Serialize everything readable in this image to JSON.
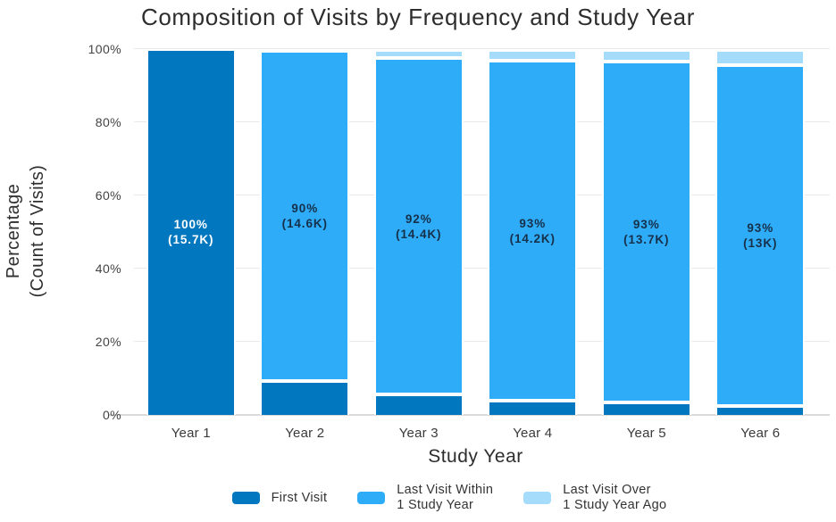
{
  "chart": {
    "title": "Composition of Visits by Frequency and Study Year",
    "y_axis": {
      "title_line1": "Percentage",
      "title_line2": "(Count of Visits)",
      "ticks": [
        "0%",
        "20%",
        "40%",
        "60%",
        "80%",
        "100%"
      ]
    },
    "x_axis": {
      "title": "Study Year"
    }
  },
  "chart_data": {
    "type": "bar",
    "stacked": true,
    "title": "Composition of Visits by Frequency and Study Year",
    "xlabel": "Study Year",
    "ylabel": "Percentage (Count of Visits)",
    "ylim": [
      0,
      100
    ],
    "grid": true,
    "legend_position": "bottom",
    "categories": [
      "Year 1",
      "Year 2",
      "Year 3",
      "Year 4",
      "Year 5",
      "Year 6"
    ],
    "series": [
      {
        "name": "First Visit",
        "color": "#0077BE",
        "values": [
          100,
          9.3,
          5.5,
          3.8,
          3.5,
          2.5
        ]
      },
      {
        "name": "Last Visit Within 1 Study Year",
        "color": "#2FACF8",
        "values": [
          0,
          90.2,
          92,
          93,
          93,
          93
        ]
      },
      {
        "name": "Last Visit Over 1 Study Year Ago",
        "color": "#A5DBFB",
        "values": [
          0,
          0,
          2.3,
          2.9,
          3.2,
          4.3
        ]
      }
    ],
    "bar_labels": [
      {
        "pct": "100%",
        "count": "(15.7K)"
      },
      {
        "pct": "90%",
        "count": "(14.6K)"
      },
      {
        "pct": "92%",
        "count": "(14.4K)"
      },
      {
        "pct": "93%",
        "count": "(14.2K)"
      },
      {
        "pct": "93%",
        "count": "(13.7K)"
      },
      {
        "pct": "93%",
        "count": "(13K)"
      }
    ]
  },
  "legend": {
    "items": [
      {
        "label_line1": "First Visit",
        "label_line2": "",
        "color": "#0077BE"
      },
      {
        "label_line1": "Last Visit Within",
        "label_line2": "1 Study Year",
        "color": "#2FACF8"
      },
      {
        "label_line1": "Last Visit Over",
        "label_line2": "1 Study Year Ago",
        "color": "#A5DBFB"
      }
    ]
  },
  "style": {
    "label_dark": "#16304a",
    "label_light": "#ffffff",
    "gridline_color": "#e9e9e9",
    "baseline_color": "#dadada"
  }
}
